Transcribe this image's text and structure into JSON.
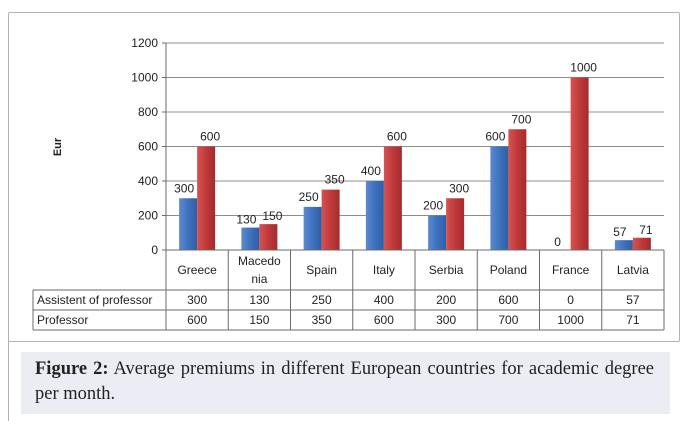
{
  "caption": {
    "label": "Figure 2:",
    "text": " Average premiums in different European countries for academic degree per month."
  },
  "chart_data": {
    "type": "bar",
    "ylabel": "Eur",
    "ylim": [
      0,
      1200
    ],
    "yticks": [
      0,
      200,
      400,
      600,
      800,
      1000,
      1200
    ],
    "grid": true,
    "categories": [
      "Greece",
      "Macedo nia",
      "Spain",
      "Italy",
      "Serbia",
      "Poland",
      "France",
      "Latvia"
    ],
    "category_lines": [
      [
        "Greece"
      ],
      [
        "Macedo",
        "nia"
      ],
      [
        "Spain"
      ],
      [
        "Italy"
      ],
      [
        "Serbia"
      ],
      [
        "Poland"
      ],
      [
        "France"
      ],
      [
        "Latvia"
      ]
    ],
    "series": [
      {
        "name": "Assistent of professor",
        "values": [
          300,
          130,
          250,
          400,
          200,
          600,
          0,
          57
        ],
        "color": "#3f72bd"
      },
      {
        "name": "Professor",
        "values": [
          600,
          150,
          350,
          600,
          300,
          700,
          1000,
          71
        ],
        "color": "#c0393a"
      }
    ],
    "legend": "data-table-below"
  }
}
